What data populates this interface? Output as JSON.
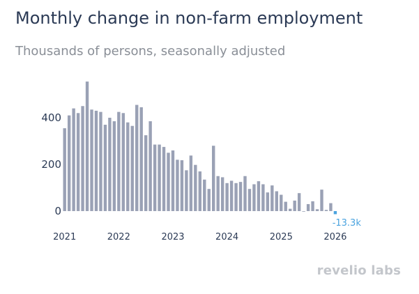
{
  "chart_data": {
    "type": "bar",
    "title": "Monthly change in non-farm employment",
    "subtitle": "Thousands of persons, seasonally adjusted",
    "start": "2021-01",
    "x": [
      "2021-01",
      "2021-02",
      "2021-03",
      "2021-04",
      "2021-05",
      "2021-06",
      "2021-07",
      "2021-08",
      "2021-09",
      "2021-10",
      "2021-11",
      "2021-12",
      "2022-01",
      "2022-02",
      "2022-03",
      "2022-04",
      "2022-05",
      "2022-06",
      "2022-07",
      "2022-08",
      "2022-09",
      "2022-10",
      "2022-11",
      "2022-12",
      "2023-01",
      "2023-02",
      "2023-03",
      "2023-04",
      "2023-05",
      "2023-06",
      "2023-07",
      "2023-08",
      "2023-09",
      "2023-10",
      "2023-11",
      "2023-12",
      "2024-01",
      "2024-02",
      "2024-03",
      "2024-04",
      "2024-05",
      "2024-06",
      "2024-07",
      "2024-08",
      "2024-09",
      "2024-10",
      "2024-11",
      "2024-12",
      "2025-01",
      "2025-02",
      "2025-03",
      "2025-04",
      "2025-05",
      "2025-06",
      "2025-07",
      "2025-08",
      "2025-09",
      "2025-10",
      "2025-11",
      "2025-12"
    ],
    "values": [
      355,
      410,
      440,
      420,
      450,
      555,
      435,
      430,
      425,
      370,
      400,
      385,
      425,
      420,
      380,
      365,
      455,
      445,
      325,
      385,
      285,
      285,
      275,
      250,
      260,
      220,
      218,
      175,
      238,
      198,
      170,
      135,
      95,
      280,
      150,
      145,
      120,
      130,
      120,
      125,
      150,
      95,
      115,
      128,
      115,
      80,
      110,
      85,
      70,
      40,
      10,
      45,
      77,
      0,
      30,
      42,
      8,
      92,
      5,
      34
    ],
    "highlight": {
      "x": "2026-01",
      "value": -13.3,
      "label": "-13.3k",
      "color": "#4aa3df"
    },
    "bar_color": "#9aa1b5",
    "ylim": [
      -30,
      620
    ],
    "yticks": [
      0,
      200,
      400
    ],
    "ytick_labels": [
      "0",
      "200",
      "400"
    ],
    "xticks": [
      "2021",
      "2022",
      "2023",
      "2024",
      "2025",
      "2026"
    ]
  },
  "branding": {
    "logo_text": "revelio labs"
  }
}
